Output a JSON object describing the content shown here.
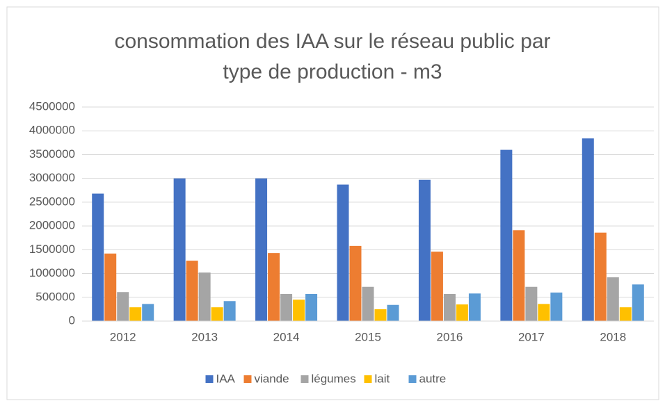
{
  "chart_data": {
    "type": "bar",
    "title": "consommation des IAA sur le réseau public par type de production - m3",
    "categories": [
      "2012",
      "2013",
      "2014",
      "2015",
      "2016",
      "2017",
      "2018"
    ],
    "series": [
      {
        "name": "IAA",
        "color": "#4472c4",
        "values": [
          2680000,
          3000000,
          3000000,
          2870000,
          2970000,
          3600000,
          3840000
        ]
      },
      {
        "name": "viande",
        "color": "#ed7d31",
        "values": [
          1420000,
          1270000,
          1430000,
          1580000,
          1460000,
          1910000,
          1860000
        ]
      },
      {
        "name": "légumes",
        "color": "#a5a5a5",
        "values": [
          610000,
          1020000,
          570000,
          720000,
          570000,
          720000,
          920000
        ]
      },
      {
        "name": "lait",
        "color": "#ffc000",
        "values": [
          290000,
          290000,
          450000,
          250000,
          350000,
          360000,
          290000
        ]
      },
      {
        "name": "autre",
        "color": "#5b9bd5",
        "values": [
          360000,
          420000,
          570000,
          340000,
          580000,
          600000,
          770000
        ]
      }
    ],
    "ylim": [
      0,
      4500000
    ],
    "yticks": [
      0,
      500000,
      1000000,
      1500000,
      2000000,
      2500000,
      3000000,
      3500000,
      4000000,
      4500000
    ],
    "grid": true,
    "legend": "bottom"
  }
}
